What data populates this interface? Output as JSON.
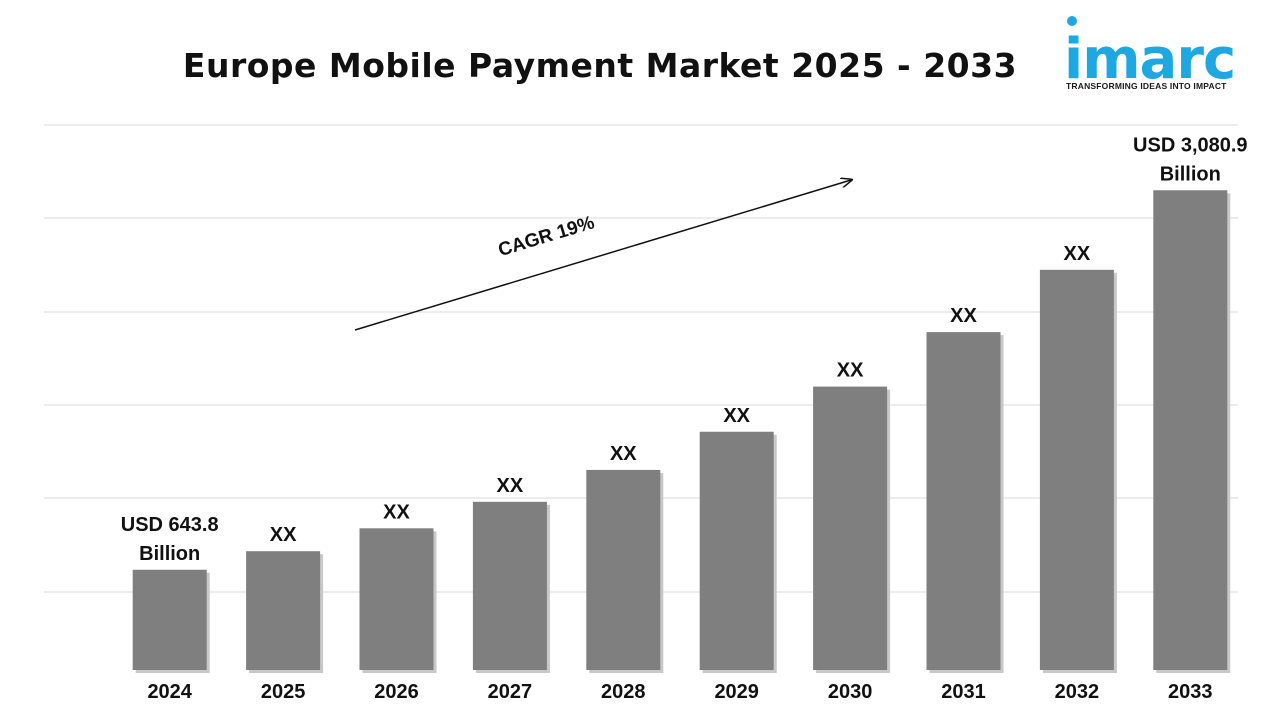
{
  "title": "Europe Mobile Payment Market 2025 - 2033",
  "logo": {
    "text": "imarc",
    "tagline": "TRANSFORMING IDEAS INTO IMPACT",
    "color": "#1ea7e1"
  },
  "colors": {
    "bar": "#7f7f7f",
    "grid": "#d9d9d9",
    "text": "#111111"
  },
  "chart_data": {
    "type": "bar",
    "title": "Europe Mobile Payment Market 2025 - 2033",
    "categories": [
      "2024",
      "2025",
      "2026",
      "2027",
      "2028",
      "2029",
      "2030",
      "2031",
      "2032",
      "2033"
    ],
    "values": [
      643.8,
      763,
      910,
      1080,
      1285,
      1530,
      1820,
      2170,
      2570,
      3080.9
    ],
    "data_labels": [
      [
        "USD 643.8",
        "Billion"
      ],
      [
        "XX"
      ],
      [
        "XX"
      ],
      [
        "XX"
      ],
      [
        "XX"
      ],
      [
        "XX"
      ],
      [
        "XX"
      ],
      [
        "XX"
      ],
      [
        "XX"
      ],
      [
        "USD 3,080.9",
        "Billion"
      ]
    ],
    "ylim": [
      0,
      3500
    ],
    "grid": true,
    "y_tick_labels_shown": false,
    "annotation": {
      "text": "CAGR 19%",
      "arrow": true
    }
  }
}
